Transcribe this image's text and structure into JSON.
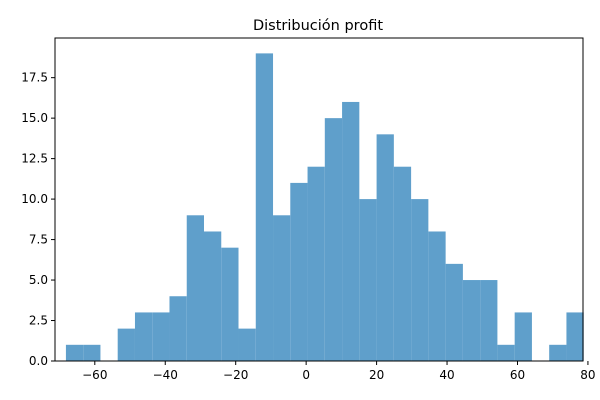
{
  "chart_data": {
    "type": "histogram",
    "title": "Distribución profit",
    "xlabel": "",
    "ylabel": "",
    "xlim": [
      -71.3,
      78.6
    ],
    "ylim": [
      0,
      19.95
    ],
    "bar_color": "#5f9fcb",
    "bin_edges": [
      -68.2,
      -63.3,
      -58.4,
      -53.5,
      -48.6,
      -43.7,
      -38.8,
      -33.9,
      -29.0,
      -24.1,
      -19.2,
      -14.3,
      -9.4,
      -4.5,
      0.4,
      5.3,
      10.2,
      15.1,
      20.0,
      24.9,
      29.8,
      34.7,
      39.6,
      44.5,
      49.4,
      54.3,
      59.2,
      64.1,
      69.0,
      73.9,
      78.8
    ],
    "counts": [
      1,
      1,
      0,
      2,
      3,
      3,
      4,
      9,
      8,
      7,
      2,
      19,
      9,
      11,
      12,
      15,
      16,
      10,
      14,
      12,
      10,
      8,
      6,
      5,
      5,
      1,
      3,
      0,
      1,
      3
    ],
    "x_ticks": [
      -60,
      -40,
      -20,
      0,
      20,
      40,
      60,
      80
    ],
    "x_tick_labels": [
      "−60",
      "−40",
      "−20",
      "0",
      "20",
      "40",
      "60",
      "80"
    ],
    "y_ticks": [
      0,
      2.5,
      5,
      7.5,
      10,
      12.5,
      15,
      17.5
    ],
    "y_tick_labels": [
      "0.0",
      "2.5",
      "5.0",
      "7.5",
      "10.0",
      "12.5",
      "15.0",
      "17.5"
    ],
    "grid": false,
    "legend": "none"
  }
}
